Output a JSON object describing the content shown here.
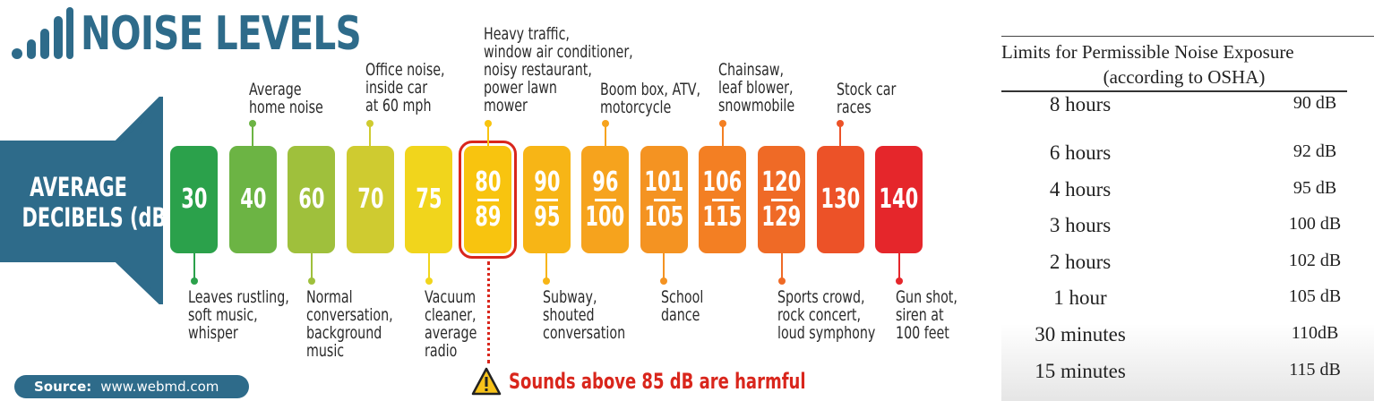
{
  "title": "NOISE LEVELS",
  "average_label": [
    "AVERAGE",
    "DECIBELS (dB)"
  ],
  "levels": [
    {
      "top": "30",
      "bottom": "",
      "color": "#2ba14b"
    },
    {
      "top": "40",
      "bottom": "",
      "color": "#6cb444"
    },
    {
      "top": "60",
      "bottom": "",
      "color": "#9fc03c"
    },
    {
      "top": "70",
      "bottom": "",
      "color": "#cfcb30"
    },
    {
      "top": "75",
      "bottom": "",
      "color": "#f1d51c"
    },
    {
      "top": "80",
      "bottom": "89",
      "color": "#f8c40f"
    },
    {
      "top": "90",
      "bottom": "95",
      "color": "#f7b516"
    },
    {
      "top": "96",
      "bottom": "100",
      "color": "#f6a31d"
    },
    {
      "top": "101",
      "bottom": "105",
      "color": "#f49322"
    },
    {
      "top": "106",
      "bottom": "115",
      "color": "#f37f23"
    },
    {
      "top": "120",
      "bottom": "129",
      "color": "#ef6a26"
    },
    {
      "top": "130",
      "bottom": "",
      "color": "#ec5228"
    },
    {
      "top": "140",
      "bottom": "",
      "color": "#e5262b"
    }
  ],
  "captions_above": [
    "Average\nhome noise",
    "Office noise,\ninside car\nat 60 mph",
    "Heavy traffic,\nwindow air conditioner,\nnoisy restaurant,\npower lawn\nmower",
    "Boom box, ATV,\nmotorcycle",
    "Chainsaw,\nleaf blower,\nsnowmobile",
    "Stock car\nraces"
  ],
  "captions_below": [
    "Leaves rustling,\nsoft music,\nwhisper",
    "Normal\nconversation,\nbackground\nmusic",
    "Vacuum\ncleaner,\naverage\nradio",
    "Subway,\nshouted\nconversation",
    "School\ndance",
    "Sports crowd,\nrock concert,\nloud symphony",
    "Gun shot,\nsiren at\n100 feet"
  ],
  "source": {
    "label": "Source:",
    "value": "www.webmd.com"
  },
  "warning": "Sounds above 85 dB are harmful",
  "osha": {
    "caption_line1": "Limits for Permissible Noise Exposure",
    "caption_line2": "(according to OSHA)",
    "rows": [
      {
        "duration": "8 hours",
        "level": "90 dB"
      },
      {
        "duration": "6 hours",
        "level": "92 dB"
      },
      {
        "duration": "4 hours",
        "level": "95 dB"
      },
      {
        "duration": "3 hours",
        "level": "100 dB"
      },
      {
        "duration": "2 hours",
        "level": "102 dB"
      },
      {
        "duration": "1 hour",
        "level": "105 dB"
      },
      {
        "duration": "30 minutes",
        "level": "110dB"
      },
      {
        "duration": "15 minutes",
        "level": "115 dB"
      }
    ]
  },
  "colors": {
    "brand": "#2e6b8a",
    "warning": "#d9261c"
  },
  "icons": [
    "signal-bars-icon",
    "megaphone-icon",
    "warning-icon"
  ]
}
